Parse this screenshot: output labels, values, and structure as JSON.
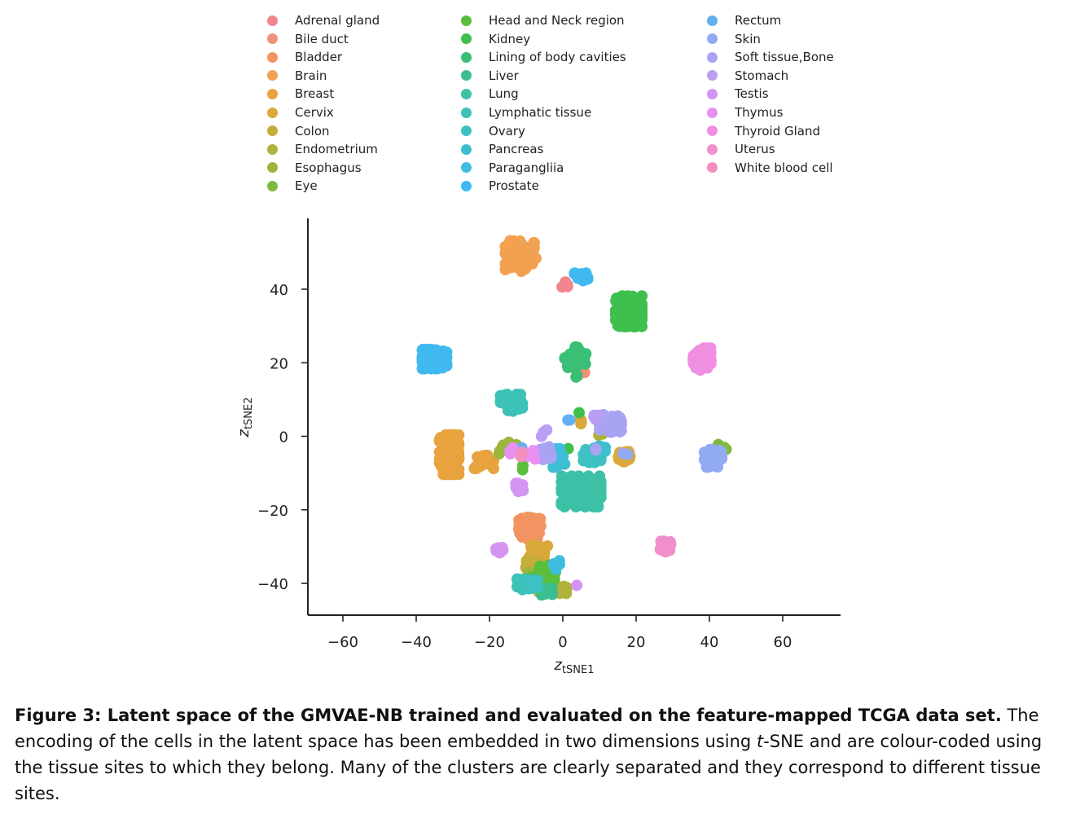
{
  "chart_data": {
    "type": "scatter",
    "xlabel": "z",
    "xlabel_sub": "tSNE1",
    "ylabel": "z",
    "ylabel_sub": "tSNE2",
    "xlim": [
      -70,
      75
    ],
    "ylim": [
      -48,
      60
    ],
    "xticks": [
      -60,
      -40,
      -20,
      0,
      20,
      40,
      60
    ],
    "yticks": [
      40,
      20,
      0,
      -20,
      -40
    ],
    "xtick_labels": [
      "−60",
      "−40",
      "−20",
      "0",
      "20",
      "40",
      "60"
    ],
    "ytick_labels": [
      "40",
      "20",
      "0",
      "−20",
      "−40"
    ],
    "legend_position": "top",
    "legend_columns": 3,
    "series": [
      {
        "name": "Adrenal gland",
        "color": "#f2858e",
        "clusters": [
          [
            1,
            41,
            1,
            1,
            6
          ]
        ]
      },
      {
        "name": "Bile duct",
        "color": "#f39079",
        "clusters": [
          [
            5,
            17.5,
            1.5,
            1,
            5
          ]
        ]
      },
      {
        "name": "Bladder",
        "color": "#f29461",
        "clusters": [
          [
            -9,
            -25,
            2.5,
            2.5,
            60
          ],
          [
            -7,
            -30,
            1.5,
            1.5,
            10
          ]
        ]
      },
      {
        "name": "Brain",
        "color": "#f2a150",
        "clusters": [
          [
            -11.5,
            49,
            3.5,
            3.5,
            90
          ]
        ]
      },
      {
        "name": "Breast",
        "color": "#e8a33f",
        "clusters": [
          [
            -31,
            -5,
            2.2,
            4.5,
            140
          ],
          [
            -21.5,
            -7,
            2.2,
            1.5,
            22
          ]
        ]
      },
      {
        "name": "Cervix",
        "color": "#d9a93b",
        "clusters": [
          [
            17,
            -5.5,
            1.5,
            1.8,
            30
          ],
          [
            -7,
            -32,
            2.5,
            2,
            25
          ],
          [
            5,
            4,
            1,
            1,
            4
          ]
        ]
      },
      {
        "name": "Colon",
        "color": "#c6ad3a",
        "clusters": [
          [
            -8,
            -36,
            2,
            2,
            15
          ],
          [
            15,
            4,
            1,
            1,
            4
          ]
        ]
      },
      {
        "name": "Endometrium",
        "color": "#b1b23b",
        "clusters": [
          [
            -7,
            -40,
            2.5,
            2,
            20
          ],
          [
            0,
            -42,
            1.5,
            1,
            10
          ],
          [
            11,
            1,
            1,
            1,
            3
          ]
        ]
      },
      {
        "name": "Esophagus",
        "color": "#9bb63c",
        "clusters": [
          [
            -15,
            -3,
            2,
            1.5,
            15
          ],
          [
            -7,
            -38,
            2,
            1.5,
            10
          ]
        ]
      },
      {
        "name": "Eye",
        "color": "#7ebb3d",
        "clusters": [
          [
            43.5,
            -3,
            1,
            1,
            8
          ]
        ]
      },
      {
        "name": "Head and Neck region",
        "color": "#5bbd3c",
        "clusters": [
          [
            -5,
            -38,
            3,
            2.5,
            40
          ],
          [
            -11,
            -8.5,
            0.5,
            0.5,
            2
          ]
        ]
      },
      {
        "name": "Kidney",
        "color": "#3ebf4e",
        "clusters": [
          [
            18,
            34,
            3,
            3.5,
            130
          ],
          [
            4,
            6.5,
            0.4,
            0.4,
            1
          ],
          [
            1.5,
            -3,
            0.4,
            0.4,
            1
          ]
        ]
      },
      {
        "name": "Lining of body cavities",
        "color": "#3bbf76",
        "clusters": [
          [
            3.5,
            21,
            2.5,
            2,
            40
          ],
          [
            4,
            24.5,
            0.5,
            0.5,
            2
          ],
          [
            3.5,
            16.5,
            0.5,
            0.5,
            2
          ]
        ]
      },
      {
        "name": "Liver",
        "color": "#3bbe90",
        "clusters": [
          [
            -4,
            -42,
            1.5,
            1,
            10
          ]
        ]
      },
      {
        "name": "Lung",
        "color": "#3cc1a6",
        "clusters": [
          [
            5,
            -15,
            4.5,
            3.5,
            130
          ]
        ]
      },
      {
        "name": "Lymphatic tissue",
        "color": "#3cc2b6",
        "clusters": [
          [
            -14,
            9,
            2.5,
            2,
            60
          ],
          [
            -11,
            -40,
            2,
            1.5,
            20
          ]
        ]
      },
      {
        "name": "Ovary",
        "color": "#3dc1c3",
        "clusters": [
          [
            8,
            -5,
            2,
            1.8,
            20
          ],
          [
            -8,
            -40,
            1.5,
            1.2,
            10
          ]
        ]
      },
      {
        "name": "Pancreas",
        "color": "#3dbfd0",
        "clusters": [
          [
            -1,
            -7,
            1.5,
            1.2,
            10
          ],
          [
            11,
            -3,
            1,
            1,
            5
          ]
        ]
      },
      {
        "name": "Paragangliia",
        "color": "#3ebde0",
        "clusters": [
          [
            -1.5,
            -4,
            1,
            1,
            5
          ],
          [
            -2,
            -35,
            1,
            1,
            5
          ]
        ]
      },
      {
        "name": "Prostate",
        "color": "#3fb9f0",
        "clusters": [
          [
            -35,
            21,
            2.8,
            2.2,
            110
          ],
          [
            5,
            43.5,
            1.5,
            1,
            15
          ]
        ]
      },
      {
        "name": "Rectum",
        "color": "#62b0f2",
        "clusters": [
          [
            2,
            5,
            0.5,
            0.5,
            2
          ],
          [
            -11.5,
            -3.5,
            0.6,
            0.6,
            2
          ]
        ]
      },
      {
        "name": "Skin",
        "color": "#92a9f3",
        "clusters": [
          [
            41,
            -6,
            2,
            2,
            60
          ],
          [
            17,
            -5,
            0.6,
            0.6,
            2
          ]
        ]
      },
      {
        "name": "Soft tissue,Bone",
        "color": "#a8a4f3",
        "clusters": [
          [
            13,
            3.5,
            2.5,
            2,
            45
          ],
          [
            -5,
            -5,
            1.5,
            1.8,
            20
          ],
          [
            9,
            -3,
            0.6,
            0.6,
            2
          ]
        ]
      },
      {
        "name": "Stomach",
        "color": "#bb9df2",
        "clusters": [
          [
            -5,
            1,
            1,
            1,
            4
          ],
          [
            9,
            5,
            1,
            1,
            6
          ]
        ]
      },
      {
        "name": "Testis",
        "color": "#d495f2",
        "clusters": [
          [
            -17.5,
            -30.5,
            1,
            1,
            12
          ],
          [
            -12,
            -14,
            1,
            1,
            12
          ],
          [
            3.5,
            -41,
            0.4,
            0.4,
            1
          ]
        ]
      },
      {
        "name": "Thymus",
        "color": "#e98ff0",
        "clusters": [
          [
            -8.5,
            -5,
            1.2,
            1,
            6
          ],
          [
            -14,
            -4,
            1,
            1,
            4
          ]
        ]
      },
      {
        "name": "Thyroid Gland",
        "color": "#f08fe0",
        "clusters": [
          [
            38,
            21,
            2,
            2.5,
            90
          ]
        ]
      },
      {
        "name": "Uterus",
        "color": "#f18fce",
        "clusters": [
          [
            28,
            -30,
            1.2,
            1.2,
            22
          ]
        ]
      },
      {
        "name": "White blood cell",
        "color": "#f28fbe",
        "clusters": [
          [
            -11,
            -5,
            0.6,
            0.6,
            2
          ]
        ]
      }
    ]
  },
  "caption": {
    "figure_label": "Figure 3: Latent space of the GMVAE-NB trained and evaluated on the feature-mapped TCGA data set.",
    "text_before_italic": " The encoding of the cells in the latent space has been embedded in two dimensions using ",
    "italic": "t",
    "text_after_italic": "-SNE and are colour-coded using the tissue sites to which they belong. Many of the clusters are clearly separated and they correspond to different tissue sites."
  }
}
